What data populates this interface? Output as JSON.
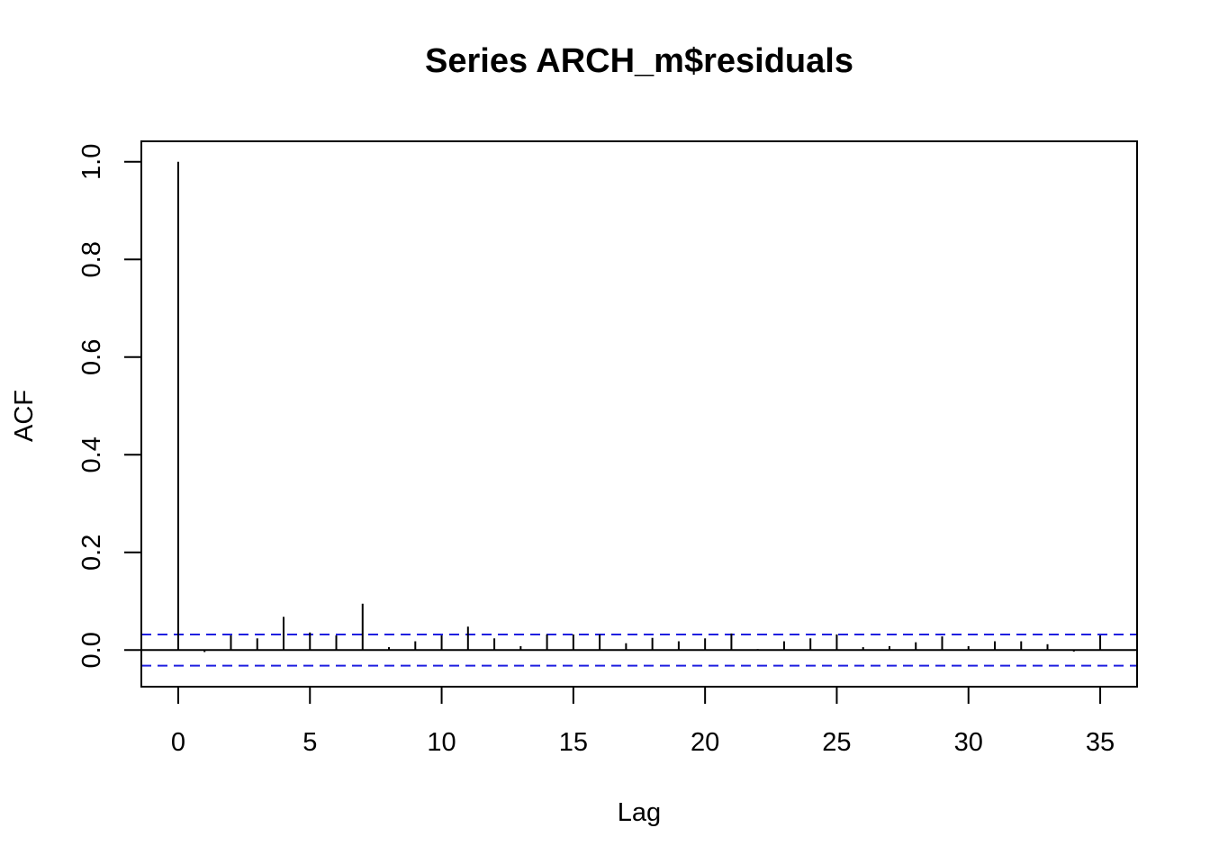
{
  "chart_data": {
    "type": "bar",
    "title": "Series  ARCH_m$residuals",
    "xlabel": "Lag",
    "ylabel": "ACF",
    "xlim": [
      -1.4,
      36.4
    ],
    "ylim": [
      -0.075,
      1.042
    ],
    "x_ticks": [
      "0",
      "5",
      "10",
      "15",
      "20",
      "25",
      "30",
      "35"
    ],
    "y_ticks": [
      "0.0",
      "0.2",
      "0.4",
      "0.6",
      "0.8",
      "1.0"
    ],
    "lags": [
      0,
      1,
      2,
      3,
      4,
      5,
      6,
      7,
      8,
      9,
      10,
      11,
      12,
      13,
      14,
      15,
      16,
      17,
      18,
      19,
      20,
      21,
      22,
      23,
      24,
      25,
      26,
      27,
      28,
      29,
      30,
      31,
      32,
      33,
      34,
      35
    ],
    "acf": [
      1.0,
      -0.004,
      0.03,
      0.024,
      0.068,
      0.036,
      0.03,
      0.095,
      0.006,
      0.018,
      0.03,
      0.048,
      0.024,
      0.008,
      0.032,
      0.032,
      0.032,
      0.014,
      0.025,
      0.018,
      0.024,
      0.034,
      0.002,
      0.018,
      0.024,
      0.032,
      0.006,
      0.008,
      0.016,
      0.028,
      0.008,
      0.018,
      0.018,
      0.012,
      -0.003,
      0.03
    ],
    "confidence_bound": 0.032,
    "colors": {
      "bars": "#000000",
      "confidence_lines": "#1f1fe0",
      "axes": "#000000"
    },
    "grid": false,
    "legend": "none"
  }
}
